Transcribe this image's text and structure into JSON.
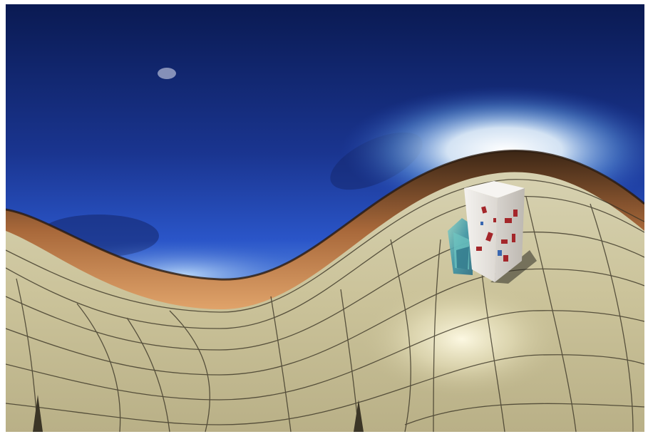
{
  "image": {
    "kind": "equirectangular-panorama",
    "subject": "3d-rendered-scene",
    "elements": [
      "sky",
      "sun-glow",
      "moon",
      "horizon-terrain",
      "grid-floor",
      "textured-box",
      "glass-block",
      "floor-light-spot"
    ]
  },
  "colors": {
    "sky_top": "#0c1f5e",
    "sky_mid": "#1f3d9c",
    "sky_horizon": "#cfe6ff",
    "terrain_dark": "#3a2514",
    "terrain_light": "#c98a4e",
    "floor": "#c9c19a",
    "floor_highlight": "#fbf6dc",
    "grid_line": "#3b3526",
    "box_face": "#e9e6e2",
    "box_spots": "#a4262a",
    "glass": "#4fa7a8"
  }
}
